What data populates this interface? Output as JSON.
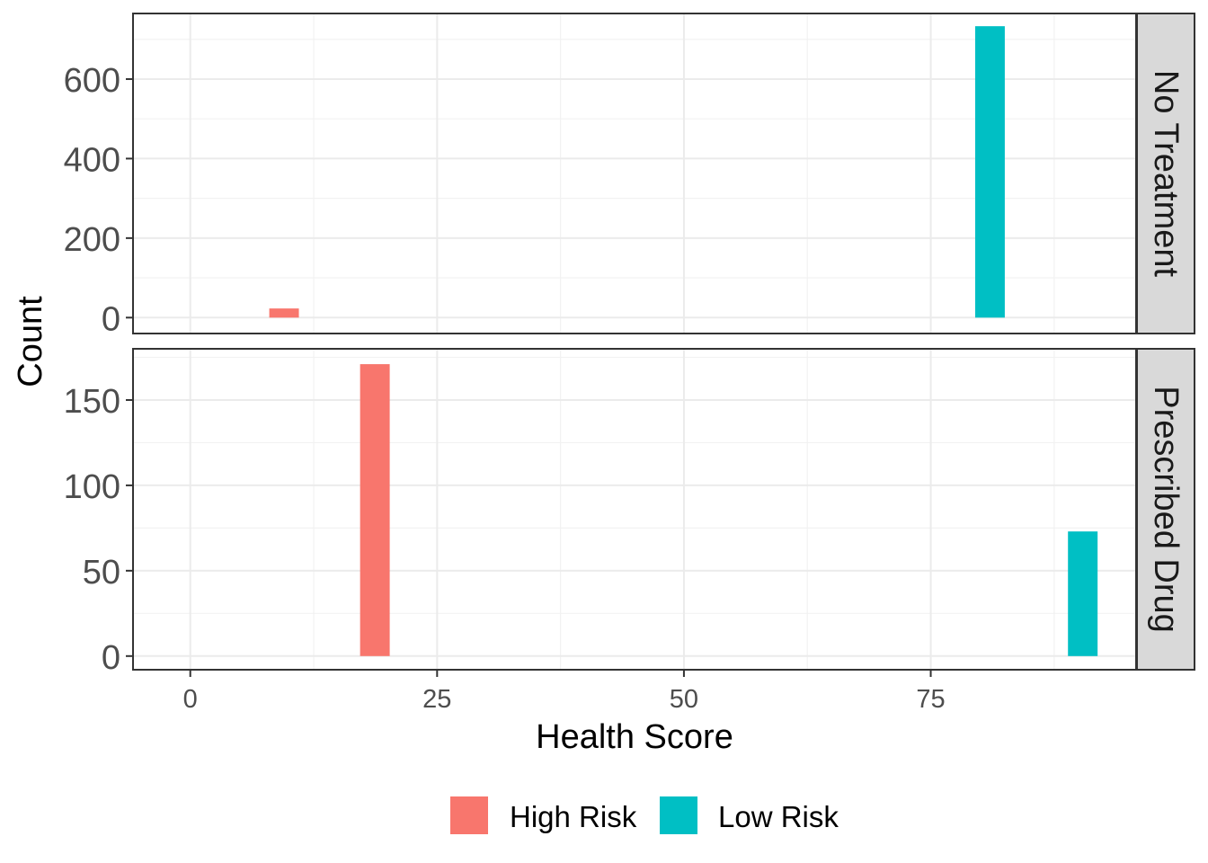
{
  "chart_data": {
    "type": "bar",
    "xlabel": "Health Score",
    "ylabel": "Count",
    "x_ticks": [
      0,
      25,
      50,
      75
    ],
    "xlim": [
      -5.8,
      95.8
    ],
    "bar_width": 3,
    "legend": {
      "position": "bottom",
      "entries": [
        {
          "name": "High Risk",
          "color": "#F8766D"
        },
        {
          "name": "Low Risk",
          "color": "#00BFC4"
        }
      ]
    },
    "facets": [
      {
        "label": "No Treatment",
        "ylim": [
          -40,
          765
        ],
        "y_ticks": [
          0,
          200,
          400,
          600
        ],
        "bars": [
          {
            "x": 9.5,
            "y": 23,
            "group": "High Risk"
          },
          {
            "x": 81,
            "y": 733,
            "group": "Low Risk"
          }
        ]
      },
      {
        "label": "Prescribed Drug",
        "ylim": [
          -8,
          180
        ],
        "y_ticks": [
          0,
          50,
          100,
          150
        ],
        "bars": [
          {
            "x": 18.7,
            "y": 171,
            "group": "High Risk"
          },
          {
            "x": 90.4,
            "y": 73,
            "group": "Low Risk"
          }
        ]
      }
    ],
    "grid": true,
    "theme": "bw"
  }
}
